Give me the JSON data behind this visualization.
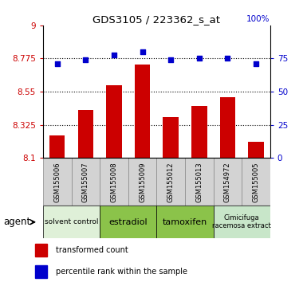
{
  "title": "GDS3105 / 223362_s_at",
  "samples": [
    "GSM155006",
    "GSM155007",
    "GSM155008",
    "GSM155009",
    "GSM155012",
    "GSM155013",
    "GSM154972",
    "GSM155005"
  ],
  "bar_values": [
    8.255,
    8.425,
    8.595,
    8.735,
    8.375,
    8.455,
    8.515,
    8.21
  ],
  "dot_values": [
    8.74,
    8.765,
    8.8,
    8.822,
    8.765,
    8.775,
    8.778,
    8.737
  ],
  "bar_color": "#cc0000",
  "dot_color": "#0000cc",
  "ymin": 8.1,
  "ymax": 9.0,
  "yticks_left": [
    8.1,
    8.325,
    8.55,
    8.775,
    9.0
  ],
  "yticks_left_labels": [
    "8.1",
    "8.325",
    "8.55",
    "8.775",
    "9"
  ],
  "yticks_right_vals": [
    0,
    25,
    50,
    75
  ],
  "yticks_right_labels": [
    "0",
    "25",
    "50",
    "75"
  ],
  "right_top_label": "100%",
  "gridlines": [
    8.325,
    8.55,
    8.775
  ],
  "agent_groups": [
    {
      "label": "solvent control",
      "start": 0,
      "end": 1,
      "color": "#dff0d8",
      "fontsize": 6
    },
    {
      "label": "estradiol",
      "start": 2,
      "end": 3,
      "color": "#8ec96e",
      "fontsize": 8
    },
    {
      "label": "tamoxifen",
      "start": 4,
      "end": 5,
      "color": "#8ec96e",
      "fontsize": 8
    },
    {
      "label": "Cimicifuga\nracemosa extract",
      "start": 6,
      "end": 7,
      "color": "#c8e6c9",
      "fontsize": 6.5
    }
  ],
  "xlabel_agent": "agent",
  "legend_bar": "transformed count",
  "legend_dot": "percentile rank within the sample",
  "tick_color_left": "#cc0000",
  "tick_color_right": "#0000cc",
  "sample_box_color": "#d3d3d3",
  "sample_box_edge": "#888888"
}
